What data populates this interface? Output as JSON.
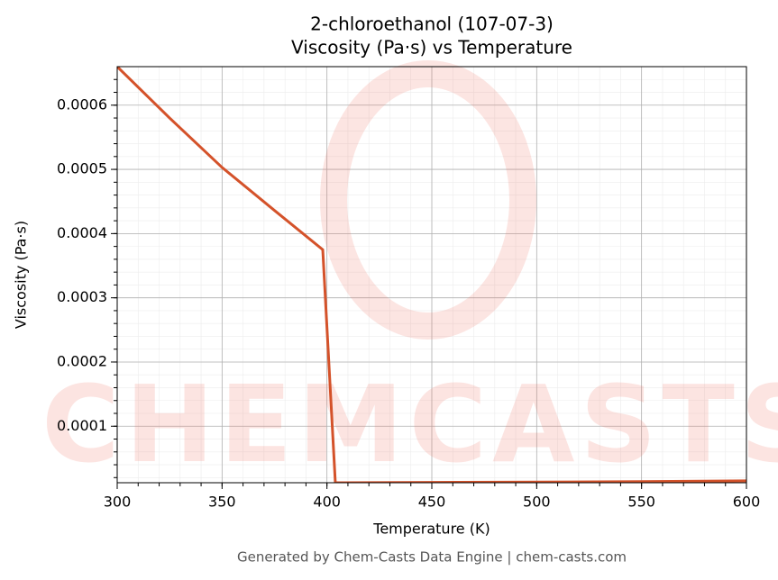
{
  "chart_data": {
    "type": "line",
    "title": "2-chloroethanol (107-07-3)",
    "subtitle": "Viscosity (Pa·s) vs Temperature",
    "x_label": "Temperature (K)",
    "y_label": "Viscosity (Pa·s)",
    "watermark": "CHEMCASTS",
    "footer": "Generated by Chem-Casts Data Engine | chem-casts.com",
    "x": [
      300,
      325,
      350,
      375,
      398,
      404,
      450,
      500,
      550,
      600
    ],
    "series": [
      {
        "name": "Viscosity",
        "color": "#d4522a",
        "values": [
          0.00066,
          0.00058,
          0.000503,
          0.000436,
          0.000375,
          1.2e-05,
          1.25e-05,
          1.3e-05,
          1.38e-05,
          1.5e-05
        ]
      }
    ],
    "xlim": [
      300,
      600
    ],
    "xticks": [
      300,
      350,
      400,
      450,
      500,
      550,
      600
    ],
    "ylim": [
      1.2e-05,
      0.00066
    ],
    "yticks": [
      0.0001,
      0.0002,
      0.0003,
      0.0004,
      0.0005,
      0.0006
    ],
    "grid": true
  }
}
